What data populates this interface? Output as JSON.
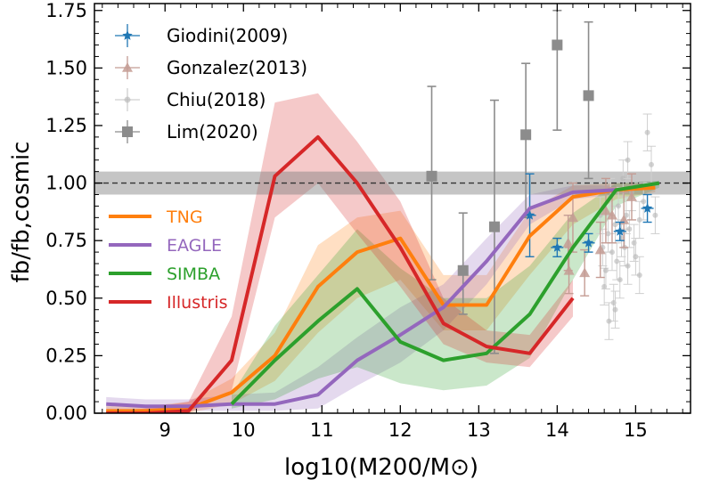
{
  "chart_data": {
    "type": "line",
    "title": "",
    "xlabel": "log10(M200/M⊙)",
    "ylabel": "fb/fb,cosmic",
    "xlim": [
      8.1,
      15.7
    ],
    "ylim": [
      0.0,
      1.78
    ],
    "xticks": [
      "9",
      "10",
      "11",
      "12",
      "13",
      "14",
      "15"
    ],
    "yticks": [
      "0.00",
      "0.25",
      "0.50",
      "0.75",
      "1.00",
      "1.25",
      "1.50",
      "1.75"
    ],
    "grid": false,
    "reference_line": {
      "y": 1.0,
      "band": [
        0.95,
        1.05
      ],
      "style": "dashed"
    },
    "simulation_legend_placement": "center-left",
    "observation_legend_placement": "top-left",
    "simulations": [
      {
        "name": "TNG",
        "color": "#ff7f0e",
        "x": [
          8.25,
          8.75,
          9.3,
          9.85,
          10.4,
          10.95,
          11.45,
          12.0,
          12.55,
          13.1,
          13.65,
          14.2,
          14.75,
          15.25
        ],
        "y": [
          0.01,
          0.01,
          0.02,
          0.09,
          0.25,
          0.55,
          0.7,
          0.76,
          0.47,
          0.47,
          0.77,
          0.94,
          0.97,
          0.98
        ],
        "low": [
          0.0,
          0.0,
          0.0,
          0.04,
          0.14,
          0.35,
          0.5,
          0.58,
          0.36,
          0.36,
          0.6,
          0.82,
          0.93,
          0.96
        ],
        "high": [
          0.03,
          0.03,
          0.05,
          0.15,
          0.35,
          0.73,
          0.85,
          0.88,
          0.6,
          0.6,
          0.88,
          0.99,
          1.0,
          1.0
        ]
      },
      {
        "name": "EAGLE",
        "color": "#9467bd",
        "x": [
          8.25,
          8.75,
          9.3,
          9.85,
          10.4,
          10.95,
          11.45,
          12.0,
          12.55,
          13.1,
          13.65,
          14.2,
          14.75
        ],
        "y": [
          0.04,
          0.03,
          0.03,
          0.04,
          0.04,
          0.08,
          0.23,
          0.34,
          0.46,
          0.66,
          0.89,
          0.96,
          0.97
        ],
        "low": [
          0.01,
          0.01,
          0.01,
          0.01,
          0.01,
          0.02,
          0.12,
          0.22,
          0.36,
          0.56,
          0.82,
          0.93,
          0.95
        ],
        "high": [
          0.07,
          0.06,
          0.06,
          0.08,
          0.09,
          0.2,
          0.33,
          0.46,
          0.56,
          0.76,
          0.95,
          0.99,
          0.99
        ]
      },
      {
        "name": "SIMBA",
        "color": "#2ca02c",
        "x": [
          9.85,
          10.4,
          10.95,
          11.45,
          12.0,
          12.55,
          13.1,
          13.65,
          14.2,
          14.75,
          15.3
        ],
        "y": [
          0.04,
          0.23,
          0.4,
          0.54,
          0.31,
          0.23,
          0.26,
          0.43,
          0.72,
          0.97,
          1.0
        ],
        "low": [
          0.02,
          0.06,
          0.15,
          0.2,
          0.13,
          0.1,
          0.12,
          0.24,
          0.58,
          0.9,
          0.98
        ],
        "high": [
          0.08,
          0.38,
          0.6,
          0.8,
          0.63,
          0.5,
          0.5,
          0.64,
          0.87,
          1.0,
          1.01
        ]
      },
      {
        "name": "Illustris",
        "color": "#d62728",
        "x": [
          8.25,
          8.75,
          9.3,
          9.85,
          10.4,
          10.95,
          11.45,
          12.0,
          12.55,
          13.1,
          13.65,
          14.2
        ],
        "y": [
          0.0,
          0.0,
          0.01,
          0.23,
          1.03,
          1.2,
          1.0,
          0.72,
          0.39,
          0.29,
          0.26,
          0.5
        ],
        "low": [
          0.0,
          0.0,
          0.0,
          0.1,
          0.85,
          1.0,
          0.78,
          0.55,
          0.3,
          0.22,
          0.2,
          0.42
        ],
        "high": [
          0.01,
          0.02,
          0.05,
          0.42,
          1.35,
          1.39,
          1.18,
          0.92,
          0.5,
          0.36,
          0.34,
          0.58
        ]
      }
    ],
    "observations": [
      {
        "name": "Giodini(2009)",
        "color": "#1f77b4",
        "marker": "star",
        "points": [
          {
            "x": 13.65,
            "y": 0.86,
            "yerr": 0.18,
            "xerr": 0.03
          },
          {
            "x": 14.0,
            "y": 0.72,
            "yerr": 0.04,
            "xerr": 0.05
          },
          {
            "x": 14.4,
            "y": 0.74,
            "yerr": 0.04,
            "xerr": 0.05
          },
          {
            "x": 14.8,
            "y": 0.79,
            "yerr": 0.04,
            "xerr": 0.05
          },
          {
            "x": 15.15,
            "y": 0.89,
            "yerr": 0.06,
            "xerr": 0.04
          }
        ]
      },
      {
        "name": "Gonzalez(2013)",
        "color": "#c49c94",
        "marker": "triangle",
        "points": [
          {
            "x": 14.14,
            "y": 0.74,
            "yerr": 0.12
          },
          {
            "x": 14.15,
            "y": 0.62,
            "yerr": 0.1
          },
          {
            "x": 14.2,
            "y": 0.85,
            "yerr": 0.15
          },
          {
            "x": 14.35,
            "y": 0.61,
            "yerr": 0.1
          },
          {
            "x": 14.55,
            "y": 0.71,
            "yerr": 0.12
          },
          {
            "x": 14.62,
            "y": 0.88,
            "yerr": 0.14
          },
          {
            "x": 14.7,
            "y": 0.86,
            "yerr": 0.12
          },
          {
            "x": 14.85,
            "y": 0.84,
            "yerr": 0.12
          },
          {
            "x": 14.95,
            "y": 0.94,
            "yerr": 0.1
          }
        ]
      },
      {
        "name": "Chiu(2018)",
        "color": "#b5b5b5",
        "marker": "circle",
        "points": [
          {
            "x": 14.55,
            "y": 0.86
          },
          {
            "x": 14.6,
            "y": 0.55
          },
          {
            "x": 14.62,
            "y": 0.62
          },
          {
            "x": 14.65,
            "y": 0.78
          },
          {
            "x": 14.68,
            "y": 0.94
          },
          {
            "x": 14.7,
            "y": 0.7
          },
          {
            "x": 14.72,
            "y": 0.48
          },
          {
            "x": 14.74,
            "y": 0.82
          },
          {
            "x": 14.76,
            "y": 0.66
          },
          {
            "x": 14.78,
            "y": 0.9
          },
          {
            "x": 14.8,
            "y": 0.58
          },
          {
            "x": 14.82,
            "y": 0.76
          },
          {
            "x": 14.84,
            "y": 1.02
          },
          {
            "x": 14.86,
            "y": 0.72
          },
          {
            "x": 14.88,
            "y": 0.86
          },
          {
            "x": 14.9,
            "y": 0.64
          },
          {
            "x": 14.92,
            "y": 0.8
          },
          {
            "x": 14.95,
            "y": 0.96
          },
          {
            "x": 14.98,
            "y": 0.74
          },
          {
            "x": 15.0,
            "y": 0.68
          },
          {
            "x": 15.05,
            "y": 0.84
          },
          {
            "x": 15.1,
            "y": 0.92
          },
          {
            "x": 15.15,
            "y": 1.22
          },
          {
            "x": 15.2,
            "y": 1.08
          },
          {
            "x": 15.25,
            "y": 0.86
          },
          {
            "x": 14.66,
            "y": 0.4
          },
          {
            "x": 14.74,
            "y": 0.45
          },
          {
            "x": 14.58,
            "y": 0.72
          },
          {
            "x": 14.9,
            "y": 1.1
          },
          {
            "x": 15.05,
            "y": 0.6
          }
        ]
      },
      {
        "name": "Lim(2020)",
        "color": "#8c8c8c",
        "marker": "square",
        "points": [
          {
            "x": 12.4,
            "y": 1.03,
            "low": 0.58,
            "high": 1.42
          },
          {
            "x": 12.8,
            "y": 0.62,
            "low": 0.43,
            "high": 0.87
          },
          {
            "x": 13.2,
            "y": 0.81,
            "low": 0.26,
            "high": 1.36
          },
          {
            "x": 13.6,
            "y": 1.21,
            "low": 0.85,
            "high": 1.52
          },
          {
            "x": 14.0,
            "y": 1.6,
            "low": 1.23,
            "high": 1.75
          },
          {
            "x": 14.4,
            "y": 1.38,
            "low": 1.02,
            "high": 1.7
          }
        ]
      }
    ]
  }
}
